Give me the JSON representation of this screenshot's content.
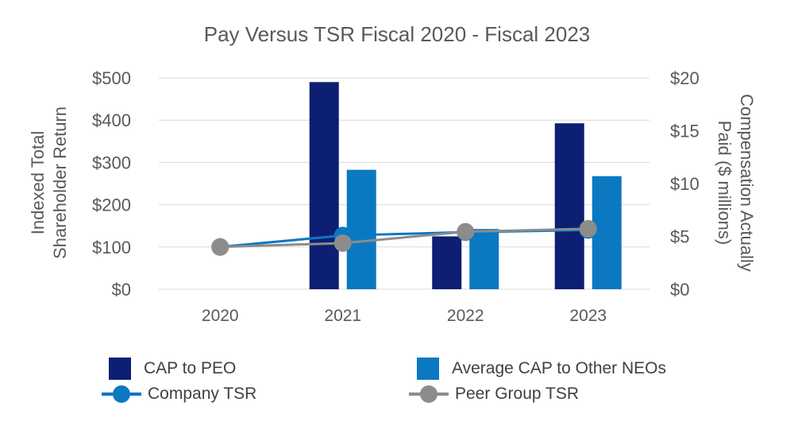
{
  "chart_data": {
    "type": "bar",
    "title": "Pay Versus TSR Fiscal 2020 - Fiscal 2023",
    "categories": [
      "2020",
      "2021",
      "2022",
      "2023"
    ],
    "ylabel_left_line1": "Indexed Total",
    "ylabel_left_line2": "Shareholder Return",
    "ylabel_right_line1": "Compensation Actually",
    "ylabel_right_line2": "Paid ($ millions)",
    "left_axis": {
      "ylim": [
        0,
        500
      ],
      "ticks": [
        0,
        100,
        200,
        300,
        400,
        500
      ],
      "tick_labels": [
        "$0",
        "$100",
        "$200",
        "$300",
        "$400",
        "$500"
      ]
    },
    "right_axis": {
      "ylim": [
        0,
        20
      ],
      "ticks": [
        0,
        5,
        10,
        15,
        20
      ],
      "tick_labels": [
        "$0",
        "$5",
        "$10",
        "$15",
        "$20"
      ]
    },
    "grid": true,
    "legend_position": "bottom",
    "series": [
      {
        "name": "CAP to PEO",
        "kind": "bar",
        "axis": "right",
        "color": "#0d1f73",
        "values": [
          0,
          19.6,
          5.0,
          15.7
        ]
      },
      {
        "name": "Average CAP to Other NEOs",
        "kind": "bar",
        "axis": "right",
        "color": "#0b78c2",
        "values": [
          0,
          11.3,
          5.7,
          10.7
        ]
      },
      {
        "name": "Company TSR",
        "kind": "line",
        "axis": "left",
        "color": "#0b78c2",
        "values": [
          100,
          127,
          135,
          140
        ]
      },
      {
        "name": "Peer Group TSR",
        "kind": "line",
        "axis": "left",
        "color": "#8c8c8c",
        "values": [
          100,
          109,
          136,
          143
        ]
      }
    ]
  }
}
